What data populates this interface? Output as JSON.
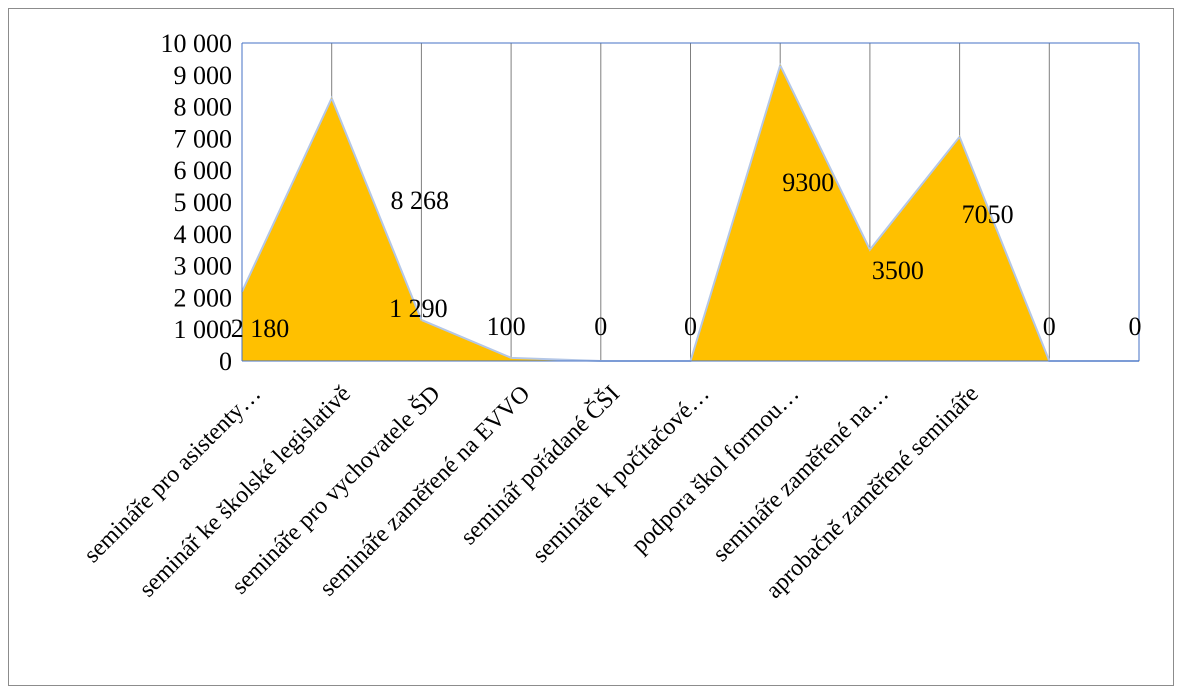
{
  "chart_data": {
    "type": "area",
    "categories": [
      "semináře pro asistenty…",
      "seminář ke školské legislativě",
      "semináře pro vychovatele ŠD",
      "semináře zaměřené na EVVO",
      "seminář pořádané ČŠI",
      "semináře k počítačové…",
      "podpora škol formou…",
      "semináře zaměřené na…",
      "aprobačně zaměřené semináře",
      "",
      ""
    ],
    "series": [
      {
        "values": [
          2180,
          8268,
          1290,
          100,
          0,
          0,
          9300,
          3500,
          7050,
          0,
          0
        ]
      }
    ],
    "data_labels": [
      "2 180",
      "8 268",
      "1 290",
      "100",
      "0",
      "0",
      "9300",
      "3500",
      "7050",
      "0",
      "0"
    ],
    "y_ticks": [
      0,
      1000,
      2000,
      3000,
      4000,
      5000,
      6000,
      7000,
      8000,
      9000,
      10000
    ],
    "y_tick_labels": [
      "0",
      "1 000",
      "2 000",
      "3 000",
      "4 000",
      "5 000",
      "6 000",
      "7 000",
      "8 000",
      "9 000",
      "10 000"
    ],
    "ylim": [
      0,
      10000
    ],
    "grid": "vertical",
    "legend": "none",
    "colors": {
      "fill": "#FFC000",
      "outline": "#B4C7E7",
      "grid": "#7f7f7f",
      "axis": "#4472C4"
    }
  }
}
